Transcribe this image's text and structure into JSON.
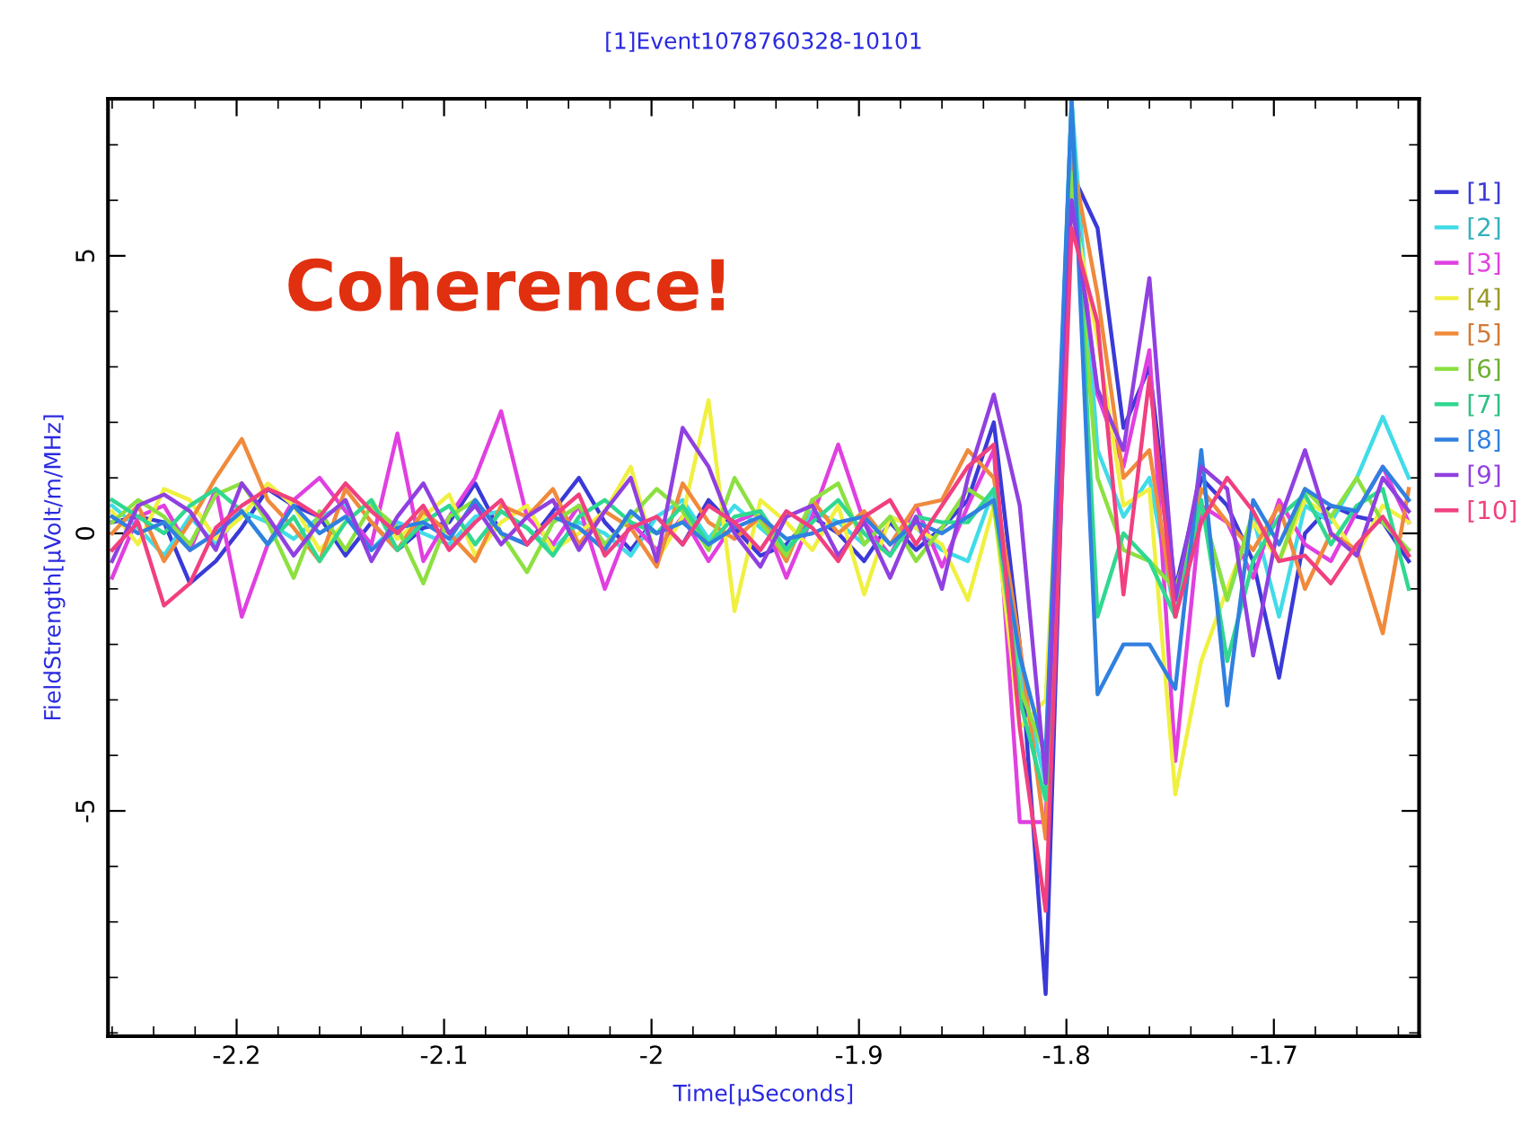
{
  "chart_data": {
    "type": "line",
    "title": "[1]Event1078760328-10101",
    "xlabel": "Time[μSeconds]",
    "ylabel": "FieldStrength[μVolt/m/MHz]",
    "annotations": [
      "Coherence!"
    ],
    "x": [
      -2.26,
      -2.2475,
      -2.235,
      -2.2225,
      -2.21,
      -2.1975,
      -2.185,
      -2.1725,
      -2.16,
      -2.1475,
      -2.135,
      -2.1225,
      -2.11,
      -2.0975,
      -2.085,
      -2.0725,
      -2.06,
      -2.0475,
      -2.035,
      -2.0225,
      -2.01,
      -1.9975,
      -1.985,
      -1.9725,
      -1.96,
      -1.9475,
      -1.935,
      -1.9225,
      -1.91,
      -1.8975,
      -1.885,
      -1.8725,
      -1.86,
      -1.8475,
      -1.835,
      -1.8225,
      -1.81,
      -1.7975,
      -1.785,
      -1.7725,
      -1.76,
      -1.7475,
      -1.735,
      -1.7225,
      -1.71,
      -1.6975,
      -1.685,
      -1.6725,
      -1.66,
      -1.6475,
      -1.635
    ],
    "xlim": [
      -2.262,
      -1.63
    ],
    "ylim": [
      -9.06,
      7.83
    ],
    "xticks": [
      -2.2,
      -2.1,
      -2,
      -1.9,
      -1.8,
      -1.7
    ],
    "yticks": [
      -5,
      0,
      5
    ],
    "legend": "right",
    "line_style": "solid",
    "series": [
      {
        "name": "[1]",
        "color": "#3a3ad8",
        "values": [
          0.2,
          0.3,
          0.2,
          -0.9,
          -0.5,
          0.1,
          0.8,
          0.5,
          0.3,
          -0.4,
          0.2,
          -0.3,
          0.1,
          0.2,
          0.9,
          0.0,
          -0.2,
          0.4,
          1.0,
          0.2,
          -0.3,
          0.3,
          -0.2,
          0.6,
          0.1,
          -0.4,
          -0.2,
          0.3,
          0.0,
          -0.5,
          0.2,
          -0.3,
          0.1,
          0.6,
          2.0,
          -2.0,
          -8.3,
          6.5,
          5.5,
          1.9,
          3.0,
          -1.0,
          1.0,
          0.5,
          -0.5,
          -2.6,
          0.0,
          0.5,
          0.3,
          0.2,
          -0.5
        ]
      },
      {
        "name": "[2]",
        "color": "#40dce8",
        "values": [
          0.5,
          0.1,
          -0.4,
          0.3,
          -0.2,
          0.4,
          0.2,
          -0.1,
          0.3,
          0.5,
          -0.3,
          0.2,
          0.0,
          -0.2,
          0.3,
          0.4,
          0.1,
          -0.3,
          0.2,
          0.0,
          -0.4,
          0.3,
          0.6,
          -0.1,
          0.5,
          0.1,
          -0.3,
          0.4,
          0.2,
          -0.2,
          0.3,
          0.1,
          -0.3,
          -0.5,
          0.8,
          -2.5,
          -4.5,
          7.8,
          1.5,
          0.3,
          1.0,
          -1.5,
          0.5,
          -1.2,
          0.3,
          -1.5,
          0.5,
          0.2,
          1.0,
          2.1,
          1.0
        ]
      },
      {
        "name": "[3]",
        "color": "#e040e0",
        "values": [
          -0.8,
          0.3,
          0.5,
          -0.3,
          0.8,
          -1.5,
          -0.2,
          0.6,
          1.0,
          0.4,
          -0.2,
          1.8,
          -0.5,
          0.3,
          1.0,
          2.2,
          0.3,
          -0.2,
          0.5,
          -1.0,
          0.2,
          -0.3,
          0.3,
          -0.5,
          0.2,
          0.4,
          -0.8,
          0.3,
          1.6,
          0.2,
          -0.4,
          0.5,
          -0.6,
          0.5,
          1.5,
          -5.2,
          -5.2,
          6.5,
          2.5,
          1.2,
          3.3,
          -4.1,
          0.5,
          0.2,
          -0.8,
          0.6,
          -0.2,
          -0.5,
          0.4,
          1.2,
          0.2
        ]
      },
      {
        "name": "[4]",
        "color": "#f0f040",
        "values": [
          0.4,
          -0.2,
          0.8,
          0.6,
          -0.1,
          0.3,
          0.9,
          0.5,
          -0.3,
          0.2,
          0.6,
          -0.1,
          0.3,
          0.7,
          -0.4,
          0.2,
          0.5,
          -0.3,
          0.0,
          0.4,
          1.2,
          -0.5,
          0.3,
          2.4,
          -1.4,
          0.6,
          0.2,
          -0.3,
          0.5,
          -1.1,
          0.3,
          0.1,
          -0.2,
          -1.2,
          0.5,
          -3.5,
          -3.0,
          6.0,
          3.5,
          0.5,
          0.8,
          -4.7,
          -2.3,
          -1.0,
          0.2,
          -0.5,
          0.6,
          0.3,
          -0.4,
          0.5,
          0.2
        ]
      },
      {
        "name": "[5]",
        "color": "#f08a3c",
        "values": [
          0.0,
          0.5,
          -0.5,
          0.2,
          1.0,
          1.7,
          0.6,
          0.1,
          -0.5,
          0.8,
          0.2,
          -0.3,
          0.4,
          0.0,
          -0.5,
          0.5,
          0.3,
          0.8,
          -0.2,
          0.4,
          0.1,
          -0.6,
          0.9,
          0.2,
          -0.1,
          0.3,
          -0.5,
          0.6,
          0.0,
          0.4,
          -0.2,
          0.5,
          0.6,
          1.5,
          1.0,
          -2.0,
          -5.5,
          6.8,
          4.3,
          1.0,
          1.5,
          -1.5,
          0.8,
          0.2,
          -0.3,
          0.5,
          -1.0,
          0.0,
          -0.3,
          -1.8,
          0.8
        ]
      },
      {
        "name": "[6]",
        "color": "#8ce040",
        "values": [
          0.2,
          0.6,
          0.3,
          -0.2,
          0.7,
          0.9,
          0.2,
          -0.8,
          0.4,
          -0.3,
          0.5,
          0.1,
          -0.9,
          0.3,
          0.6,
          0.0,
          -0.7,
          0.2,
          0.5,
          -0.2,
          0.3,
          0.8,
          0.4,
          -0.3,
          1.0,
          0.2,
          -0.4,
          0.6,
          0.9,
          -0.2,
          0.3,
          -0.5,
          0.1,
          0.8,
          0.5,
          -2.8,
          -4.0,
          6.5,
          1.0,
          -0.3,
          -0.5,
          -1.0,
          0.5,
          -1.2,
          0.4,
          -0.5,
          0.8,
          0.3,
          1.0,
          0.2,
          -0.3
        ]
      },
      {
        "name": "[7]",
        "color": "#30d890",
        "values": [
          0.6,
          0.3,
          0.0,
          0.5,
          0.8,
          0.4,
          -0.2,
          0.3,
          -0.5,
          0.2,
          0.6,
          -0.3,
          0.2,
          0.5,
          -0.2,
          0.4,
          0.1,
          -0.4,
          0.3,
          0.6,
          0.2,
          0.0,
          0.5,
          -0.2,
          0.3,
          0.4,
          -0.3,
          0.2,
          0.6,
          0.0,
          -0.4,
          0.3,
          0.2,
          0.2,
          0.8,
          -3.0,
          -4.8,
          7.8,
          -1.5,
          0.0,
          -0.5,
          -1.5,
          0.6,
          -2.3,
          -0.5,
          0.3,
          0.7,
          -0.2,
          0.5,
          0.8,
          -1.0
        ]
      },
      {
        "name": "[8]",
        "color": "#3080e0",
        "values": [
          0.3,
          0.0,
          0.2,
          -0.3,
          0.0,
          0.4,
          -0.2,
          0.5,
          0.0,
          0.3,
          -0.3,
          0.1,
          0.2,
          -0.1,
          0.6,
          0.0,
          -0.2,
          0.3,
          0.1,
          -0.3,
          0.4,
          0.0,
          0.2,
          -0.2,
          0.1,
          0.3,
          -0.1,
          0.0,
          0.2,
          0.3,
          -0.2,
          0.2,
          0.0,
          0.3,
          0.6,
          -2.2,
          -4.0,
          7.8,
          -2.9,
          -2.0,
          -2.0,
          -2.8,
          1.5,
          -3.1,
          0.6,
          -0.2,
          0.8,
          0.5,
          0.4,
          1.2,
          0.6
        ]
      },
      {
        "name": "[9]",
        "color": "#9040e0",
        "values": [
          -0.5,
          0.5,
          0.7,
          0.4,
          -0.3,
          0.9,
          0.3,
          -0.4,
          0.2,
          0.6,
          -0.5,
          0.3,
          0.9,
          0.0,
          0.5,
          -0.2,
          0.3,
          0.6,
          -0.3,
          0.4,
          1.0,
          -0.5,
          1.9,
          1.2,
          0.0,
          -0.6,
          0.3,
          0.5,
          -0.4,
          0.2,
          -0.8,
          0.3,
          -1.0,
          1.0,
          2.5,
          0.5,
          -4.5,
          6.0,
          2.6,
          1.5,
          4.6,
          -1.2,
          1.2,
          0.8,
          -2.2,
          0.2,
          1.5,
          0.0,
          -0.4,
          1.0,
          0.4
        ]
      },
      {
        "name": "[10]",
        "color": "#f04080",
        "values": [
          -0.3,
          0.2,
          -1.3,
          -0.9,
          0.1,
          0.5,
          0.8,
          0.6,
          0.3,
          0.9,
          0.4,
          0.0,
          0.5,
          -0.3,
          0.2,
          0.6,
          -0.2,
          0.3,
          0.7,
          -0.4,
          0.1,
          0.3,
          -0.2,
          0.5,
          0.2,
          -0.3,
          0.4,
          0.1,
          -0.5,
          0.3,
          0.6,
          -0.2,
          0.5,
          1.2,
          1.6,
          -3.5,
          -6.8,
          5.5,
          3.8,
          -1.1,
          2.8,
          -1.5,
          0.2,
          1.0,
          0.4,
          -0.5,
          -0.4,
          -0.9,
          -0.2,
          0.3,
          -0.4
        ]
      }
    ]
  }
}
